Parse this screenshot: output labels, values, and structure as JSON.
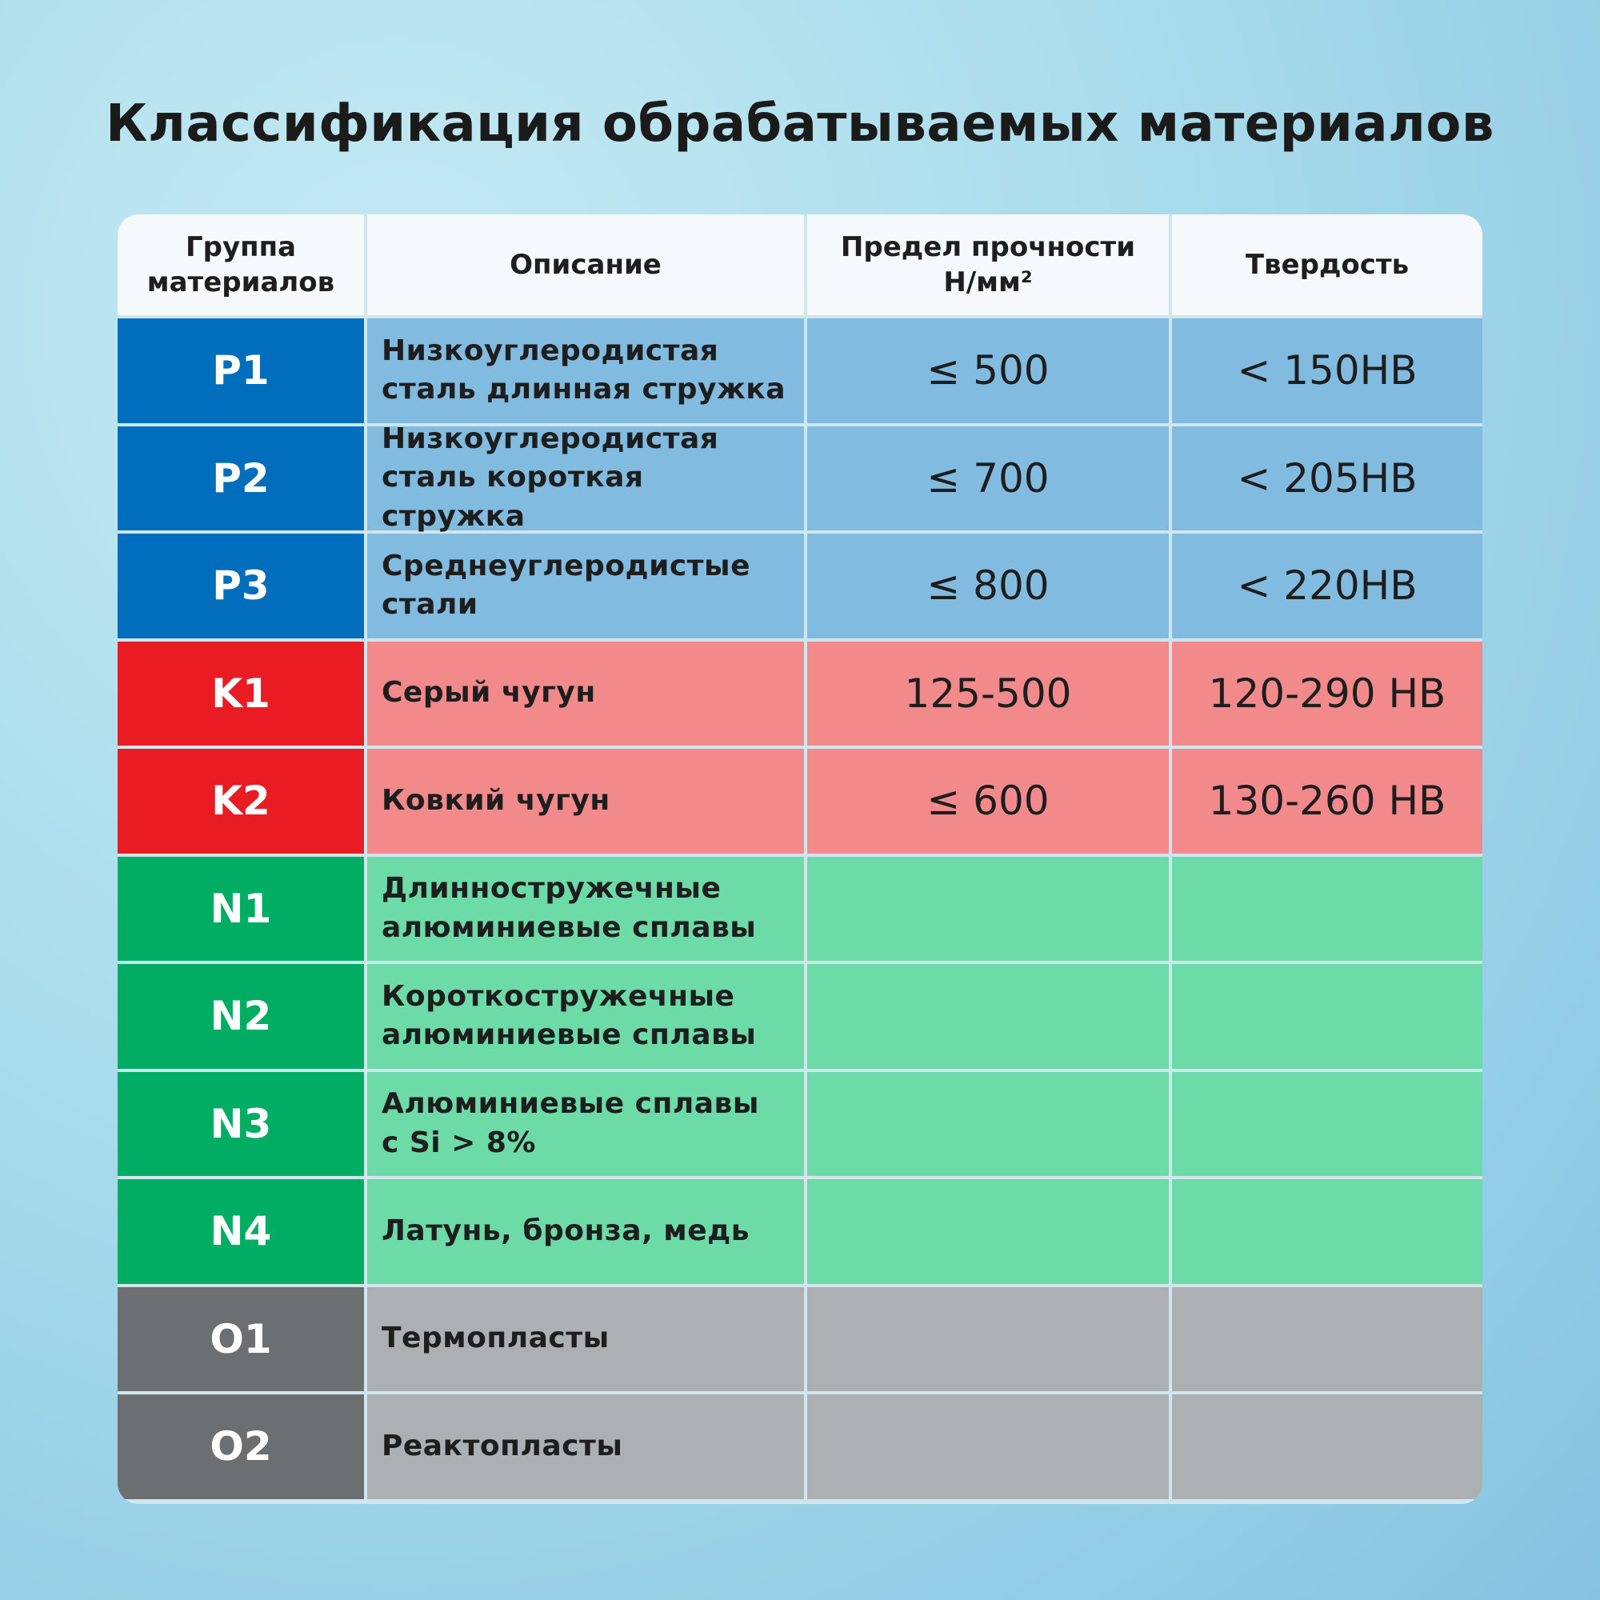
{
  "title": "Классификация обрабатываемых материалов",
  "colors": {
    "P": "#006ebc",
    "P_light": "#82bbe0",
    "K": "#e81c22",
    "K_light": "#f28a8b",
    "N": "#00ad63",
    "N_light": "#6cdba7",
    "O": "#6c6f71",
    "O_light": "#acb0b2"
  },
  "headers": {
    "group": "Группа\nматериалов",
    "description": "Описание",
    "strength": "Предел прочности\nН/мм²",
    "hardness": "Твердость"
  },
  "rows": [
    {
      "group": "P1",
      "family": "P",
      "description": "Низкоуглеродистая\nсталь длинная стружка",
      "strength": "≤ 500",
      "hardness": "< 150HB"
    },
    {
      "group": "P2",
      "family": "P",
      "description": "Низкоуглеродистая\nсталь короткая стружка",
      "strength": "≤ 700",
      "hardness": "< 205HB"
    },
    {
      "group": "P3",
      "family": "P",
      "description": "Среднеуглеродистые\nстали",
      "strength": "≤ 800",
      "hardness": "< 220HB"
    },
    {
      "group": "K1",
      "family": "K",
      "description": "Серый чугун",
      "strength": "125-500",
      "hardness": "120-290 HB"
    },
    {
      "group": "K2",
      "family": "K",
      "description": "Ковкий чугун",
      "strength": "≤ 600",
      "hardness": "130-260 HB"
    },
    {
      "group": "N1",
      "family": "N",
      "description": "Длинностружечные\nалюминиевые сплавы",
      "strength": "",
      "hardness": ""
    },
    {
      "group": "N2",
      "family": "N",
      "description": "Короткостружечные\nалюминиевые сплавы",
      "strength": "",
      "hardness": ""
    },
    {
      "group": "N3",
      "family": "N",
      "description": "Алюминиевые сплавы\nс Si > 8%",
      "strength": "",
      "hardness": ""
    },
    {
      "group": "N4",
      "family": "N",
      "description": "Латунь, бронза, медь",
      "strength": "",
      "hardness": ""
    },
    {
      "group": "O1",
      "family": "O",
      "description": "Термопласты",
      "strength": "",
      "hardness": ""
    },
    {
      "group": "O2",
      "family": "O",
      "description": "Реактопласты",
      "strength": "",
      "hardness": ""
    }
  ]
}
